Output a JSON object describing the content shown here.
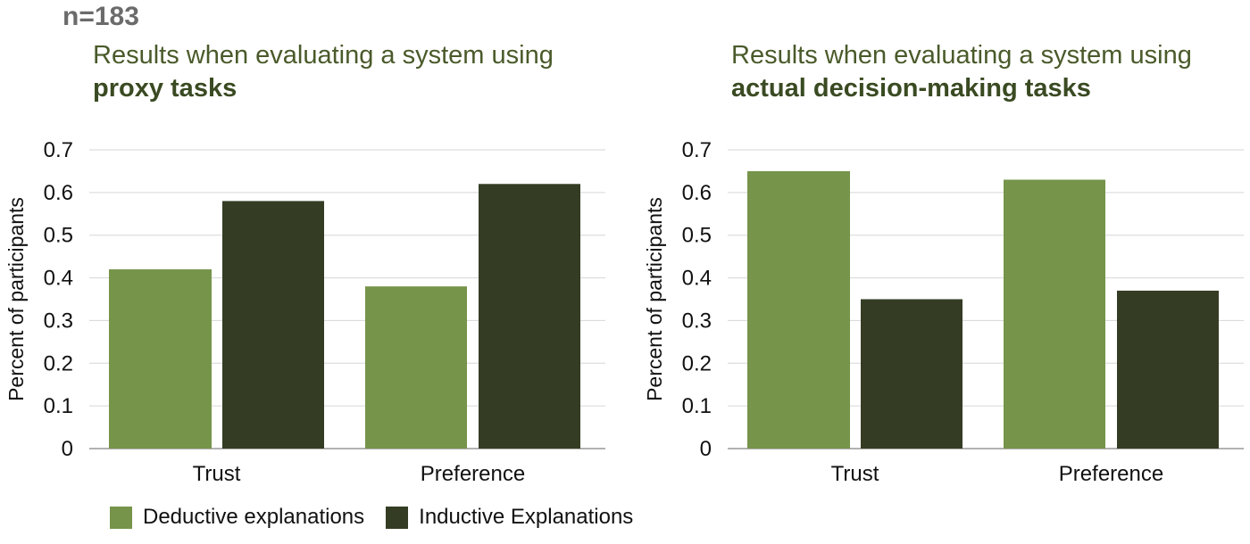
{
  "header": {
    "n_label": "n=183"
  },
  "legend": [
    {
      "name": "Deductive explanations",
      "color": "#76944a"
    },
    {
      "name": "Inductive Explanations",
      "color": "#343d24"
    }
  ],
  "chart_data": [
    {
      "type": "bar",
      "title_line1": "Results when evaluating a system using",
      "title_line2": "proxy tasks",
      "ylabel": "Percent of participants",
      "ylim": [
        0,
        0.7
      ],
      "yticks": [
        "0",
        "0.1",
        "0.2",
        "0.3",
        "0.4",
        "0.5",
        "0.6",
        "0.7"
      ],
      "categories": [
        "Trust",
        "Preference"
      ],
      "series": [
        {
          "name": "Deductive explanations",
          "values": [
            0.42,
            0.38
          ]
        },
        {
          "name": "Inductive Explanations",
          "values": [
            0.58,
            0.62
          ]
        }
      ],
      "grid": true,
      "legend_position": "bottom-left"
    },
    {
      "type": "bar",
      "title_line1": "Results when evaluating a system using",
      "title_line2": "actual decision-making tasks",
      "ylabel": "Percent of participants",
      "ylim": [
        0,
        0.7
      ],
      "yticks": [
        "0",
        "0.1",
        "0.2",
        "0.3",
        "0.4",
        "0.5",
        "0.6",
        "0.7"
      ],
      "categories": [
        "Trust",
        "Preference"
      ],
      "series": [
        {
          "name": "Deductive explanations",
          "values": [
            0.65,
            0.63
          ]
        },
        {
          "name": "Inductive Explanations",
          "values": [
            0.35,
            0.37
          ]
        }
      ],
      "grid": true,
      "legend_position": "bottom-left"
    }
  ]
}
